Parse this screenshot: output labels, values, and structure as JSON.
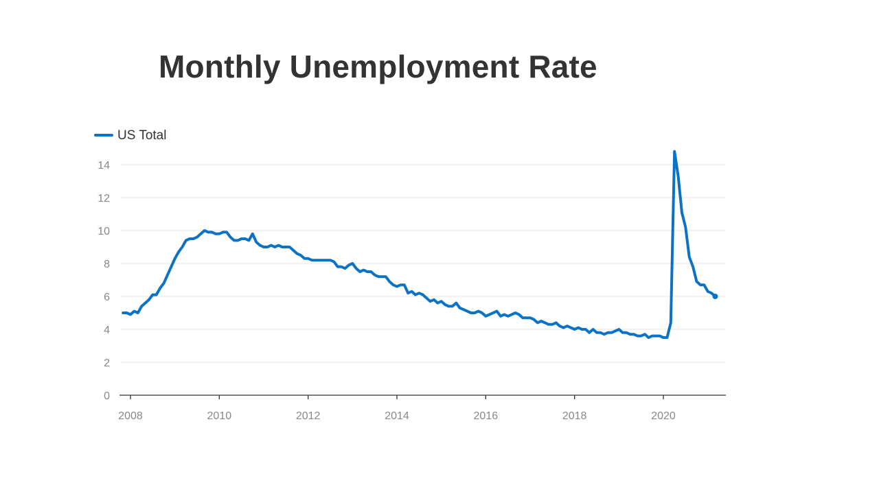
{
  "title": "Monthly Unemployment Rate",
  "chart_data": {
    "type": "line",
    "title": "Monthly Unemployment Rate",
    "xlabel": "",
    "ylabel": "",
    "xlim": [
      "2007-11",
      "2021-03"
    ],
    "ylim": [
      0,
      14
    ],
    "y_ticks": [
      "0",
      "2",
      "4",
      "6",
      "8",
      "10",
      "12",
      "14"
    ],
    "x_ticks": [
      "2008",
      "2010",
      "2012",
      "2014",
      "2016",
      "2018",
      "2020"
    ],
    "grid": "horizontal",
    "legend": "top-left",
    "color": "#0b72c4",
    "series": [
      {
        "name": "US Total",
        "start": "2007-11",
        "step": "month",
        "values": [
          5.0,
          5.0,
          4.9,
          5.1,
          5.0,
          5.4,
          5.6,
          5.8,
          6.1,
          6.1,
          6.5,
          6.8,
          7.3,
          7.8,
          8.3,
          8.7,
          9.0,
          9.4,
          9.5,
          9.5,
          9.6,
          9.8,
          10.0,
          9.9,
          9.9,
          9.8,
          9.8,
          9.9,
          9.9,
          9.6,
          9.4,
          9.4,
          9.5,
          9.5,
          9.4,
          9.8,
          9.3,
          9.1,
          9.0,
          9.0,
          9.1,
          9.0,
          9.1,
          9.0,
          9.0,
          9.0,
          8.8,
          8.6,
          8.5,
          8.3,
          8.3,
          8.2,
          8.2,
          8.2,
          8.2,
          8.2,
          8.2,
          8.1,
          7.8,
          7.8,
          7.7,
          7.9,
          8.0,
          7.7,
          7.5,
          7.6,
          7.5,
          7.5,
          7.3,
          7.2,
          7.2,
          7.2,
          6.9,
          6.7,
          6.6,
          6.7,
          6.7,
          6.2,
          6.3,
          6.1,
          6.2,
          6.1,
          5.9,
          5.7,
          5.8,
          5.6,
          5.7,
          5.5,
          5.4,
          5.4,
          5.6,
          5.3,
          5.2,
          5.1,
          5.0,
          5.0,
          5.1,
          5.0,
          4.8,
          4.9,
          5.0,
          5.1,
          4.8,
          4.9,
          4.8,
          4.9,
          5.0,
          4.9,
          4.7,
          4.7,
          4.7,
          4.6,
          4.4,
          4.5,
          4.4,
          4.3,
          4.3,
          4.4,
          4.2,
          4.1,
          4.2,
          4.1,
          4.0,
          4.1,
          4.0,
          4.0,
          3.8,
          4.0,
          3.8,
          3.8,
          3.7,
          3.8,
          3.8,
          3.9,
          4.0,
          3.8,
          3.8,
          3.7,
          3.7,
          3.6,
          3.6,
          3.7,
          3.5,
          3.6,
          3.6,
          3.6,
          3.5,
          3.5,
          4.4,
          14.8,
          13.3,
          11.1,
          10.2,
          8.4,
          7.8,
          6.9,
          6.7,
          6.7,
          6.3,
          6.2,
          6.0
        ]
      }
    ]
  }
}
